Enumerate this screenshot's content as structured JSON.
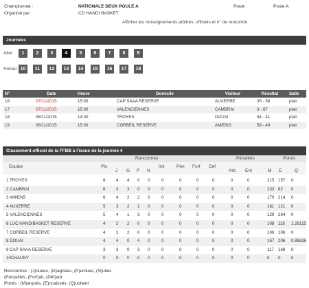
{
  "info": {
    "championship_label": "Championnat :",
    "championship_value": "NATIONALE DEUX POULE A",
    "organizer_label": "Organisé par :",
    "organizer_value": "CD HANDI BASKET",
    "pool_label": "Poule :",
    "pool_value": "Poule A",
    "details_link": "Afficher les renseignements arbitres, officiels et n° de rencontre"
  },
  "rounds": {
    "title": "Journées",
    "aller_label": "Aller",
    "retour_label": "Retour",
    "aller": [
      "1",
      "2",
      "3",
      "4",
      "5",
      "6",
      "7",
      "8",
      "9"
    ],
    "retour": [
      "10",
      "11",
      "12",
      "13",
      "14",
      "15",
      "16",
      "17",
      "18"
    ],
    "active": "4"
  },
  "matches": {
    "headers": [
      "N°",
      "Date",
      "Heure",
      "Domicile",
      "Visiteur",
      "Résultat",
      "Salle"
    ],
    "rows": [
      {
        "num": "16",
        "date": "07/11/2015",
        "time": "15:00",
        "home": "CAP SAAA RESERVE",
        "away": "AUXERRE",
        "result": "35 - 58",
        "hall": "plan"
      },
      {
        "num": "17",
        "date": "07/11/2015",
        "time": "15:00",
        "home": "VALENCIENNES",
        "away": "CAMBRAI",
        "result": "3 - 87",
        "hall": "plan"
      },
      {
        "num": "18",
        "date": "08/11/2015",
        "time": "14:00",
        "home": "TROYES",
        "away": "DOUAI",
        "result": "54 - 41",
        "hall": "plan"
      },
      {
        "num": "19",
        "date": "08/11/2015",
        "time": "15:00",
        "home": "CORBEIL RESERVE",
        "away": "AMIENS",
        "result": "59 - 49",
        "hall": "plan"
      }
    ]
  },
  "standings": {
    "title": "Classement officiel de la FFBB à l'issue de la journée 4",
    "group_headers": {
      "equipe": "Equipe",
      "pts": "Pts",
      "rencontres": "Rencontres",
      "init": "Init",
      "pen": "Pén",
      "forf": "Forf",
      "def": "Déf",
      "penalites": "Pénalités",
      "points": "Points"
    },
    "sub_headers": {
      "j": "J",
      "g": "G",
      "p": "P",
      "n": "N",
      "arb": "Arb",
      "ent": "Ent",
      "m": "M",
      "e": "E",
      "q": "Q"
    },
    "rows": [
      {
        "team": "1 TROYES",
        "pts": "8",
        "j": "4",
        "g": "4",
        "p": "0",
        "n": "0",
        "init": "0",
        "pen": "0",
        "forf": "0",
        "def": "0",
        "arb": "0",
        "ent": "0",
        "m": "215",
        "e": "157",
        "q": "0"
      },
      {
        "team": "2 CAMBRAI",
        "pts": "6",
        "j": "3",
        "g": "3",
        "p": "0",
        "n": "0",
        "init": "0",
        "pen": "0",
        "forf": "0",
        "def": "0",
        "arb": "0",
        "ent": "0",
        "m": "233",
        "e": "82",
        "q": "0"
      },
      {
        "team": "3 AMIENS",
        "pts": "6",
        "j": "4",
        "g": "2",
        "p": "2",
        "n": "0",
        "init": "0",
        "pen": "0",
        "forf": "0",
        "def": "0",
        "arb": "0",
        "ent": "0",
        "m": "170",
        "e": "214",
        "q": "0"
      },
      {
        "team": "4 AUXERRE",
        "pts": "5",
        "j": "3",
        "g": "2",
        "p": "1",
        "n": "0",
        "init": "0",
        "pen": "0",
        "forf": "0",
        "def": "0",
        "arb": "0",
        "ent": "0",
        "m": "161",
        "e": "121",
        "q": "0"
      },
      {
        "team": "5 VALENCIENNES",
        "pts": "5",
        "j": "4",
        "g": "1",
        "p": "3",
        "n": "0",
        "init": "0",
        "pen": "0",
        "forf": "0",
        "def": "0",
        "arb": "0",
        "ent": "0",
        "m": "129",
        "e": "264",
        "q": "0"
      },
      {
        "team": "6 LUC HANDIBASKET RESERVE",
        "pts": "4",
        "j": "2",
        "g": "2",
        "p": "0",
        "n": "0",
        "init": "0",
        "pen": "0",
        "forf": "0",
        "def": "0",
        "arb": "0",
        "ent": "0",
        "m": "108",
        "e": "118",
        "q": "1.28125"
      },
      {
        "team": "7 CORBEIL RESERVE",
        "pts": "4",
        "j": "2",
        "g": "2",
        "p": "0",
        "n": "0",
        "init": "0",
        "pen": "0",
        "forf": "0",
        "def": "0",
        "arb": "0",
        "ent": "0",
        "m": "106",
        "e": "106",
        "q": "0"
      },
      {
        "team": "8 DOUAI",
        "pts": "4",
        "j": "4",
        "g": "0",
        "p": "4",
        "n": "0",
        "init": "0",
        "pen": "0",
        "forf": "0",
        "def": "0",
        "arb": "0",
        "ent": "0",
        "m": "167",
        "e": "206",
        "q": "0.88636"
      },
      {
        "team": "9 CAP SAAA RESERVE",
        "pts": "3",
        "j": "3",
        "g": "0",
        "p": "3",
        "n": "0",
        "init": "0",
        "pen": "0",
        "forf": "0",
        "def": "0",
        "arb": "0",
        "ent": "0",
        "m": "117",
        "e": "169",
        "q": "0"
      },
      {
        "team": "10CHAUNY",
        "pts": "0",
        "j": "0",
        "g": "0",
        "p": "0",
        "n": "0",
        "init": "0",
        "pen": "0",
        "forf": "0",
        "def": "0",
        "arb": "0",
        "ent": "0",
        "m": "0",
        "e": "0",
        "q": "0"
      }
    ]
  },
  "legend": {
    "line1": "Rencontres : (J)ouées, (G)agnées, (P)erdues, (N)ulles",
    "line2": "(Pén)alités, (Forf)ait, (Déf)aut",
    "line3": "Points : (M)arqués, (E)ncaissés, (Q)uotient"
  }
}
